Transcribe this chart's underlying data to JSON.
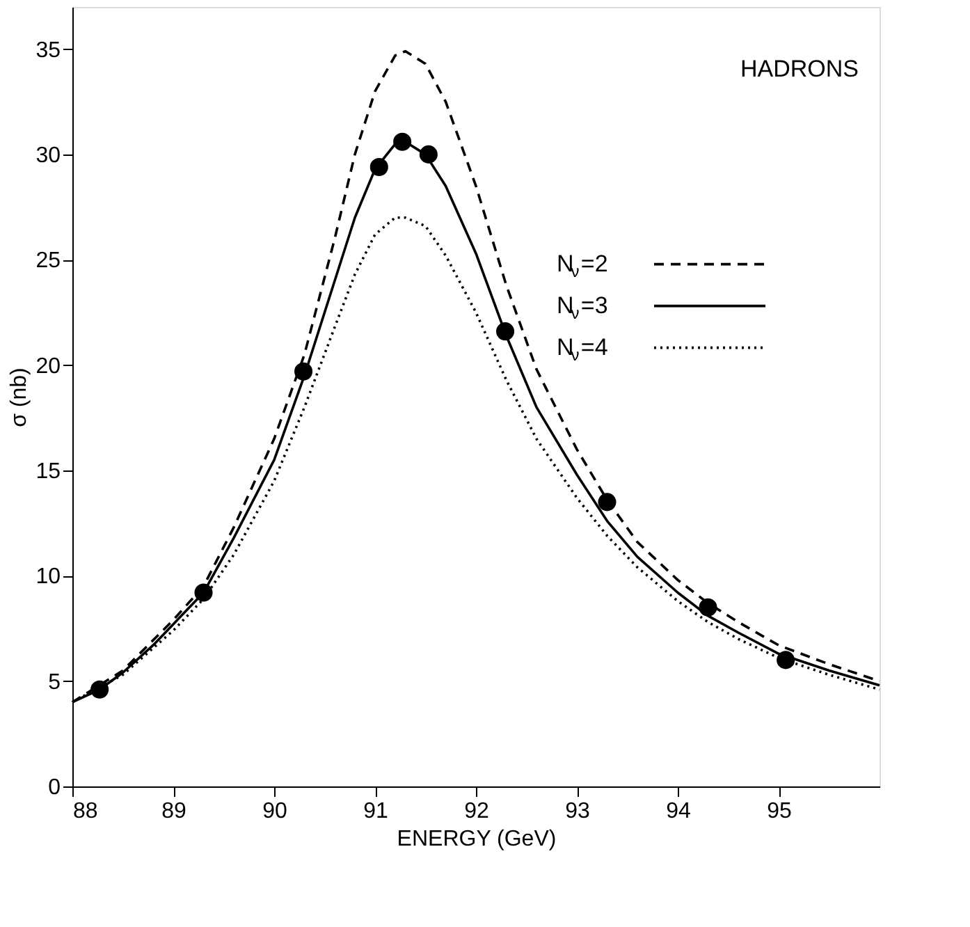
{
  "chart_data": {
    "type": "line",
    "xlabel": "ENERGY (GeV)",
    "ylabel": "σ (nb)",
    "annotations": [
      "HADRONS"
    ],
    "xlim": [
      88,
      96
    ],
    "xticks": [
      88,
      89,
      90,
      91,
      92,
      93,
      94,
      95
    ],
    "ylim": [
      0,
      37
    ],
    "yticks": [
      0,
      5,
      10,
      15,
      20,
      25,
      30,
      35
    ],
    "grid": false,
    "legend": "right",
    "series": [
      {
        "name": "N$_{ν}$=2",
        "color": "#000000",
        "line_style": "dashed",
        "marker": "none",
        "x": [
          88,
          88.5,
          89,
          89.3,
          89.6,
          90,
          90.3,
          90.6,
          90.8,
          91.0,
          91.2,
          91.3,
          91.5,
          91.7,
          92.0,
          92.3,
          92.6,
          93.0,
          93.3,
          93.6,
          94.0,
          94.3,
          94.6,
          95.0,
          95.5,
          96.0
        ],
        "values": [
          4.0,
          5.5,
          7.9,
          9.5,
          12.3,
          16.5,
          20.5,
          26.0,
          30.0,
          33.0,
          34.7,
          34.9,
          34.3,
          32.5,
          28.5,
          23.8,
          19.8,
          16.0,
          13.6,
          11.6,
          9.8,
          8.7,
          7.8,
          6.7,
          5.8,
          5.0
        ]
      },
      {
        "name": "N$_{ν}$=3",
        "color": "#000000",
        "line_style": "solid",
        "marker": "none",
        "x": [
          88,
          88.27,
          88.5,
          88.8,
          89.0,
          89.3,
          89.6,
          90.0,
          90.3,
          90.6,
          90.8,
          91.0,
          91.2,
          91.3,
          91.5,
          91.7,
          92.0,
          92.3,
          92.6,
          93.0,
          93.3,
          93.6,
          94.0,
          94.3,
          94.6,
          95.0,
          95.5,
          96.0
        ],
        "values": [
          4.0,
          4.6,
          5.4,
          6.7,
          7.7,
          9.2,
          11.8,
          15.5,
          19.5,
          24.0,
          27.0,
          29.3,
          30.5,
          30.6,
          30.0,
          28.5,
          25.3,
          21.4,
          18.0,
          14.8,
          12.6,
          10.9,
          9.2,
          8.1,
          7.3,
          6.3,
          5.5,
          4.8
        ]
      },
      {
        "name": "N$_{ν}$=4",
        "color": "#000000",
        "line_style": "dotted",
        "marker": "none",
        "x": [
          88,
          88.5,
          89,
          89.3,
          89.6,
          90,
          90.3,
          90.6,
          90.8,
          91.0,
          91.2,
          91.3,
          91.5,
          91.7,
          92.0,
          92.3,
          92.6,
          93.0,
          93.3,
          93.6,
          94.0,
          94.3,
          94.6,
          95.0,
          95.5,
          96.0
        ],
        "values": [
          4.0,
          5.3,
          7.4,
          8.9,
          11.0,
          14.5,
          18.0,
          21.8,
          24.3,
          26.2,
          27.0,
          27.0,
          26.6,
          25.2,
          22.5,
          19.3,
          16.5,
          13.7,
          11.9,
          10.4,
          8.8,
          7.8,
          7.0,
          6.1,
          5.3,
          4.6
        ]
      },
      {
        "type": "scatter",
        "color": "#000000",
        "marker": "circle",
        "x": [
          88.27,
          89.3,
          90.29,
          91.04,
          91.27,
          91.53,
          92.29,
          93.3,
          94.3,
          95.07
        ],
        "values": [
          4.6,
          9.2,
          19.7,
          29.4,
          30.6,
          30.0,
          21.6,
          13.5,
          8.5,
          6.0
        ]
      }
    ]
  }
}
